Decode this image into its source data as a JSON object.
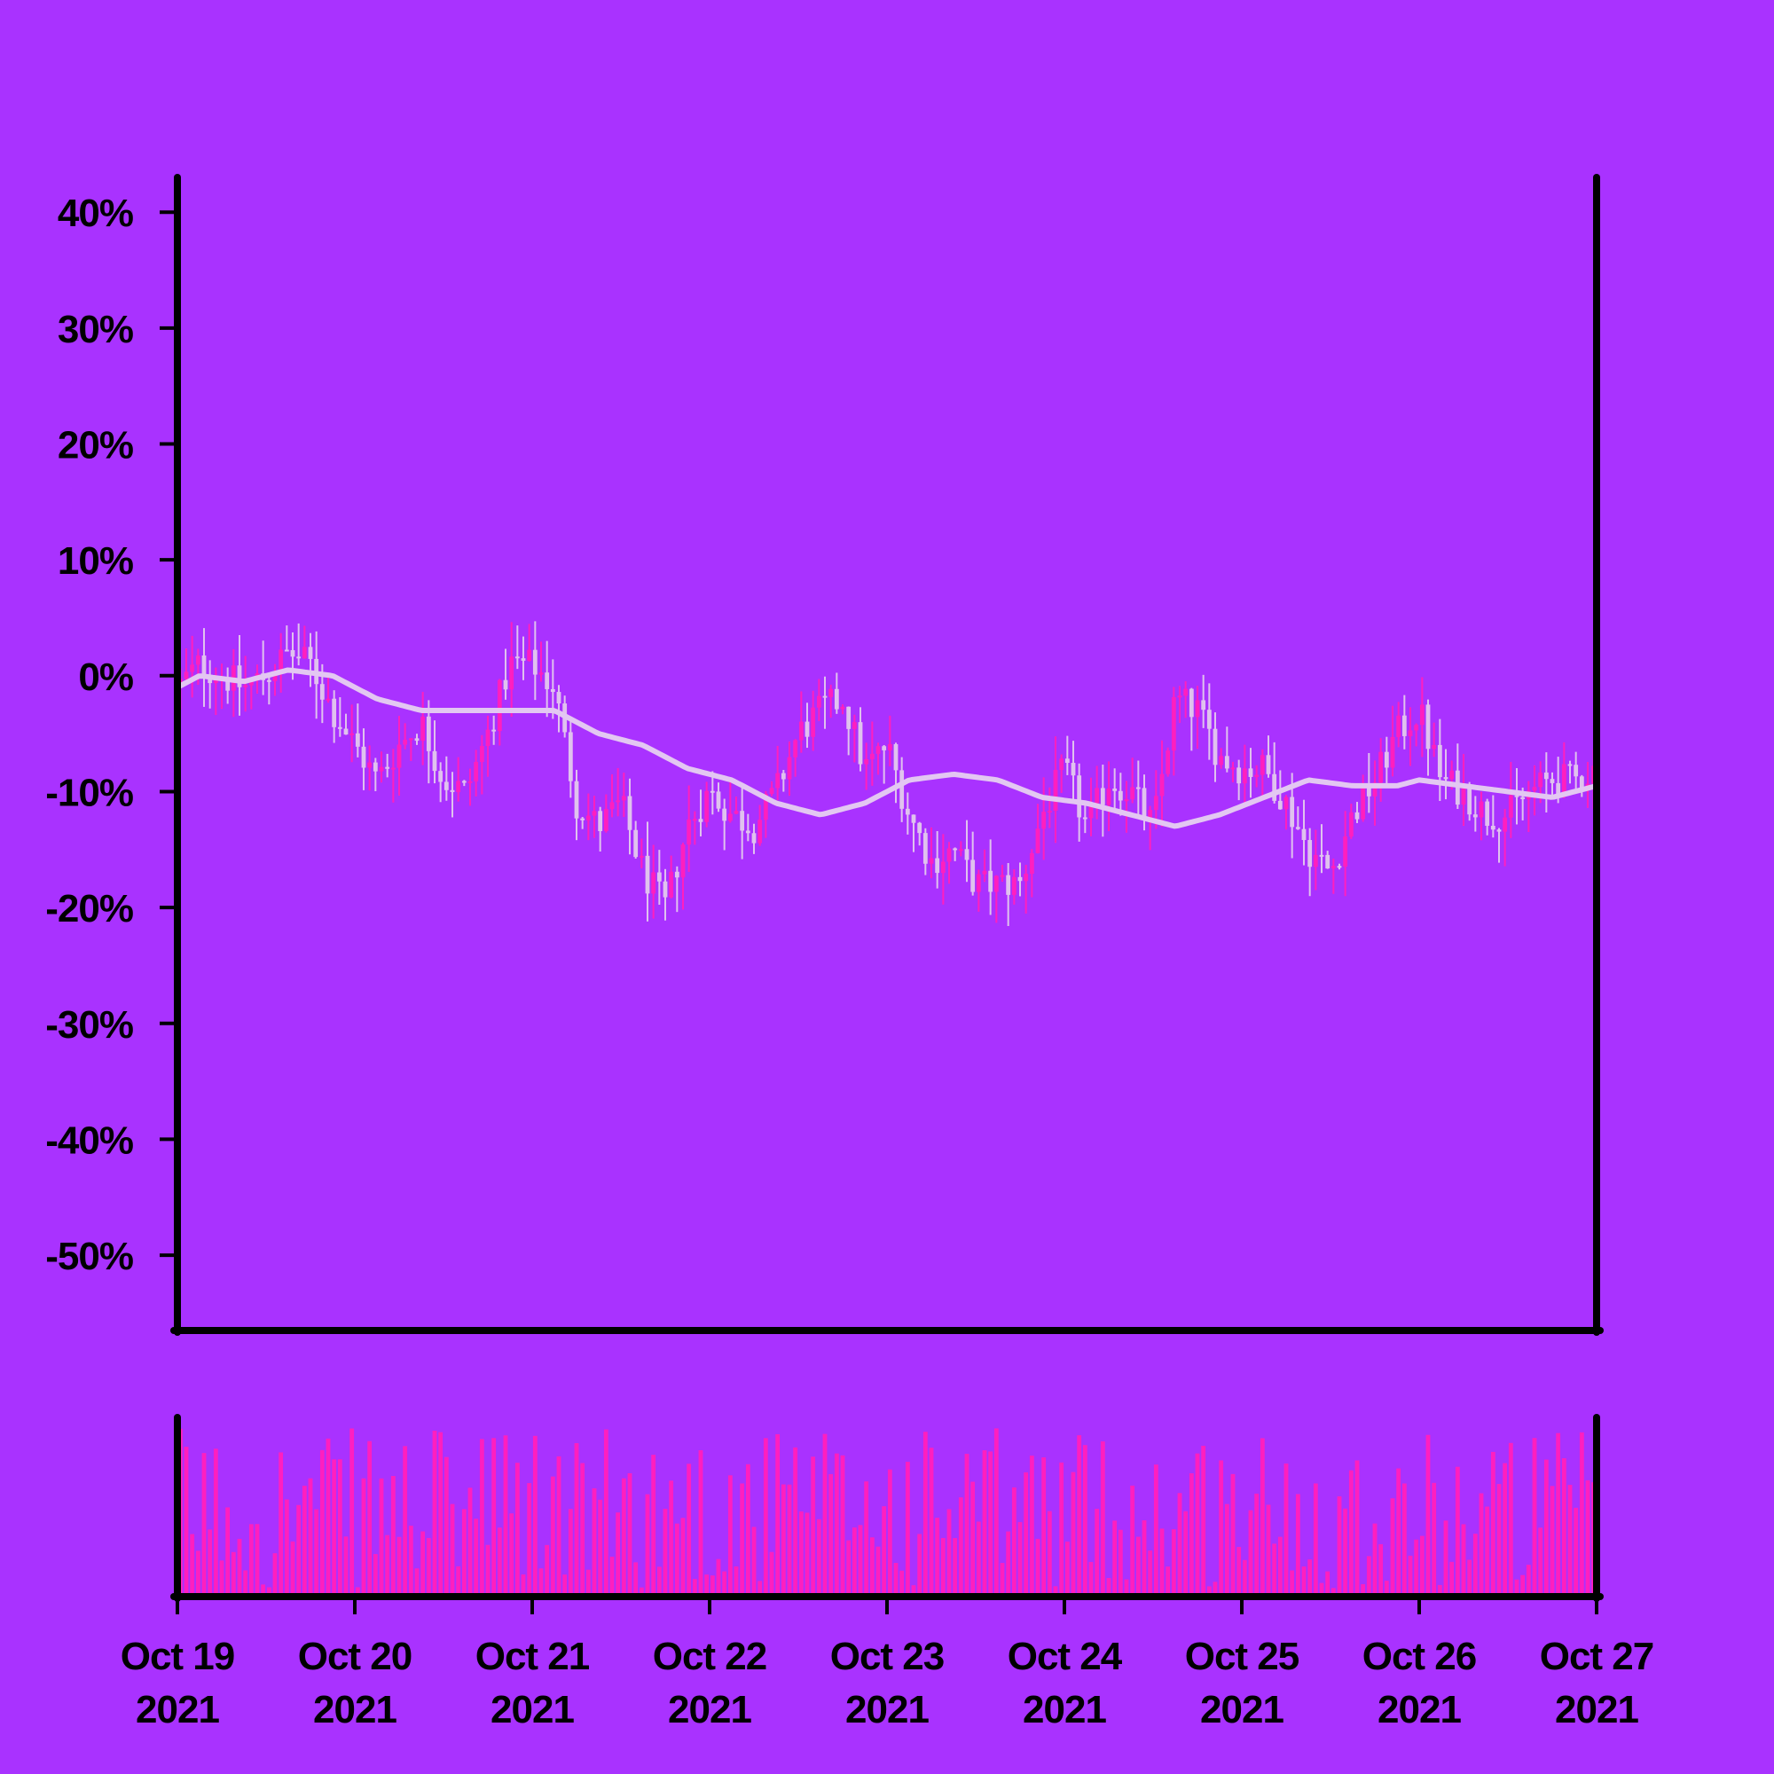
{
  "chart_data": {
    "type": "candlestick",
    "title": "",
    "xlabel": "",
    "ylabel": "",
    "colors": {
      "background": "#a932ff",
      "candle_up": "#ff1fbf",
      "candle_down": "#e0c2ee",
      "moving_average": "#e3c7f2",
      "volume": "#ff1fbf",
      "axis": "#000000"
    },
    "y_axis": {
      "ticks": [
        40,
        30,
        20,
        10,
        0,
        -10,
        -20,
        -30,
        -40,
        -50
      ],
      "tick_labels": [
        "40%",
        "30%",
        "20%",
        "10%",
        "0%",
        "-10%",
        "-20%",
        "-30%",
        "-40%",
        "-50%"
      ],
      "range": [
        -56.5,
        43.0
      ],
      "unit": "%"
    },
    "x_axis": {
      "start": "2021-10-19",
      "end": "2021-10-27",
      "tick_labels": [
        {
          "line1": "Oct 19",
          "line2": "2021"
        },
        {
          "line1": "Oct 20",
          "line2": "2021"
        },
        {
          "line1": "Oct 21",
          "line2": "2021"
        },
        {
          "line1": "Oct 22",
          "line2": "2021"
        },
        {
          "line1": "Oct 23",
          "line2": "2021"
        },
        {
          "line1": "Oct 24",
          "line2": "2021"
        },
        {
          "line1": "Oct 25",
          "line2": "2021"
        },
        {
          "line1": "Oct 26",
          "line2": "2021"
        },
        {
          "line1": "Oct 27",
          "line2": "2021"
        }
      ]
    },
    "grid": false,
    "legend": "none",
    "price_path": [
      [
        "2021-10-19T00:00",
        -1
      ],
      [
        "2021-10-19T03:00",
        1
      ],
      [
        "2021-10-19T06:00",
        0
      ],
      [
        "2021-10-19T09:00",
        -1
      ],
      [
        "2021-10-19T12:00",
        0
      ],
      [
        "2021-10-19T15:00",
        2
      ],
      [
        "2021-10-19T18:00",
        1
      ],
      [
        "2021-10-19T21:00",
        -3
      ],
      [
        "2021-10-20T00:00",
        -6
      ],
      [
        "2021-10-20T03:00",
        -9
      ],
      [
        "2021-10-20T06:00",
        -6
      ],
      [
        "2021-10-20T09:00",
        -4
      ],
      [
        "2021-10-20T12:00",
        -9
      ],
      [
        "2021-10-20T15:00",
        -10
      ],
      [
        "2021-10-20T18:00",
        -5
      ],
      [
        "2021-10-20T21:00",
        1
      ],
      [
        "2021-10-21T00:00",
        1
      ],
      [
        "2021-10-21T03:00",
        -1
      ],
      [
        "2021-10-21T06:00",
        -11
      ],
      [
        "2021-10-21T09:00",
        -13
      ],
      [
        "2021-10-21T12:00",
        -11
      ],
      [
        "2021-10-21T15:00",
        -17
      ],
      [
        "2021-10-21T18:00",
        -20
      ],
      [
        "2021-10-21T21:00",
        -13
      ],
      [
        "2021-10-22T00:00",
        -10
      ],
      [
        "2021-10-22T03:00",
        -12
      ],
      [
        "2021-10-22T06:00",
        -13
      ],
      [
        "2021-10-22T09:00",
        -10
      ],
      [
        "2021-10-22T12:00",
        -5
      ],
      [
        "2021-10-22T15:00",
        -3
      ],
      [
        "2021-10-22T18:00",
        -2
      ],
      [
        "2021-10-22T21:00",
        -8
      ],
      [
        "2021-10-23T00:00",
        -6
      ],
      [
        "2021-10-23T03:00",
        -12
      ],
      [
        "2021-10-23T06:00",
        -16
      ],
      [
        "2021-10-23T09:00",
        -15
      ],
      [
        "2021-10-23T12:00",
        -18
      ],
      [
        "2021-10-23T15:00",
        -18
      ],
      [
        "2021-10-23T18:00",
        -18
      ],
      [
        "2021-10-23T21:00",
        -12
      ],
      [
        "2021-10-24T00:00",
        -8
      ],
      [
        "2021-10-24T03:00",
        -13
      ],
      [
        "2021-10-24T06:00",
        -9
      ],
      [
        "2021-10-24T09:00",
        -10
      ],
      [
        "2021-10-24T12:00",
        -13
      ],
      [
        "2021-10-24T15:00",
        -2
      ],
      [
        "2021-10-24T18:00",
        -3
      ],
      [
        "2021-10-24T21:00",
        -7
      ],
      [
        "2021-10-25T00:00",
        -8
      ],
      [
        "2021-10-25T03:00",
        -8
      ],
      [
        "2021-10-25T06:00",
        -11
      ],
      [
        "2021-10-25T09:00",
        -15
      ],
      [
        "2021-10-25T12:00",
        -17
      ],
      [
        "2021-10-25T15:00",
        -12
      ],
      [
        "2021-10-25T18:00",
        -9
      ],
      [
        "2021-10-25T21:00",
        -5
      ],
      [
        "2021-10-26T00:00",
        -3
      ],
      [
        "2021-10-26T03:00",
        -9
      ],
      [
        "2021-10-26T06:00",
        -10
      ],
      [
        "2021-10-26T09:00",
        -12
      ],
      [
        "2021-10-26T12:00",
        -12
      ],
      [
        "2021-10-26T15:00",
        -10
      ],
      [
        "2021-10-26T18:00",
        -9
      ],
      [
        "2021-10-26T21:00",
        -9
      ],
      [
        "2021-10-27T00:00",
        -8
      ]
    ],
    "moving_average": [
      [
        "2021-10-19T00:00",
        -1
      ],
      [
        "2021-10-19T03:00",
        0
      ],
      [
        "2021-10-19T09:00",
        -0.5
      ],
      [
        "2021-10-19T15:00",
        0.5
      ],
      [
        "2021-10-19T21:00",
        0
      ],
      [
        "2021-10-20T03:00",
        -2
      ],
      [
        "2021-10-20T09:00",
        -3
      ],
      [
        "2021-10-20T15:00",
        -3
      ],
      [
        "2021-10-20T21:00",
        -3
      ],
      [
        "2021-10-21T03:00",
        -3
      ],
      [
        "2021-10-21T09:00",
        -5
      ],
      [
        "2021-10-21T15:00",
        -6
      ],
      [
        "2021-10-21T21:00",
        -8
      ],
      [
        "2021-10-22T03:00",
        -9
      ],
      [
        "2021-10-22T09:00",
        -11
      ],
      [
        "2021-10-22T15:00",
        -12
      ],
      [
        "2021-10-22T21:00",
        -11
      ],
      [
        "2021-10-23T03:00",
        -9
      ],
      [
        "2021-10-23T09:00",
        -8.5
      ],
      [
        "2021-10-23T15:00",
        -9
      ],
      [
        "2021-10-23T21:00",
        -10.5
      ],
      [
        "2021-10-24T03:00",
        -11
      ],
      [
        "2021-10-24T09:00",
        -12
      ],
      [
        "2021-10-24T15:00",
        -13
      ],
      [
        "2021-10-24T21:00",
        -12
      ],
      [
        "2021-10-25T03:00",
        -10.5
      ],
      [
        "2021-10-25T09:00",
        -9
      ],
      [
        "2021-10-25T15:00",
        -9.5
      ],
      [
        "2021-10-25T21:00",
        -9.5
      ],
      [
        "2021-10-26T00:00",
        -9
      ],
      [
        "2021-10-26T06:00",
        -9.5
      ],
      [
        "2021-10-26T12:00",
        -10
      ],
      [
        "2021-10-26T18:00",
        -10.5
      ],
      [
        "2021-10-27T00:00",
        -9.5
      ]
    ],
    "candles_per_day": 30,
    "volume": {
      "axis_labels": "none",
      "range": [
        0,
        1
      ],
      "typical_range": [
        0.05,
        1.0
      ]
    }
  }
}
